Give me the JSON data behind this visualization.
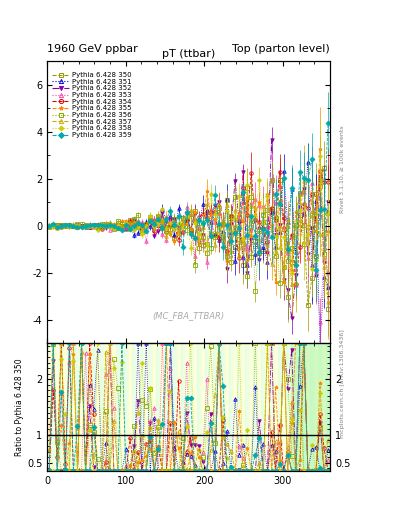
{
  "title_left": "1960 GeV ppbar",
  "title_right": "Top (parton level)",
  "plot_title": "pT (ttbar)",
  "watermark": "(MC_FBA_TTBAR)",
  "ylabel_ratio": "Ratio to Pythia 6.428 350",
  "right_label_top": "Rivet 3.1.10, ≥ 100k events",
  "right_label_bot": "mcplots.cern.ch [arXiv:1306.3436]",
  "xlim": [
    0,
    360
  ],
  "ylim_main": [
    -5,
    7
  ],
  "ylim_ratio": [
    0.35,
    2.65
  ],
  "main_yticks": [
    -4,
    -2,
    0,
    2,
    4,
    6
  ],
  "ratio_yticks": [
    0.5,
    1,
    2
  ],
  "xticks": [
    0,
    100,
    200,
    300
  ],
  "series_colors": [
    "#999900",
    "#0000dd",
    "#8800aa",
    "#ff44aa",
    "#dd0000",
    "#ff8800",
    "#88aa00",
    "#ccaa00",
    "#cccc00",
    "#00aaaa"
  ],
  "series_markers": [
    "s",
    "^",
    "v",
    "^",
    "o",
    "*",
    "s",
    "^",
    "P",
    "D"
  ],
  "series_linestyles": [
    "--",
    ":",
    "-.",
    ":",
    "--",
    "--",
    ":",
    "--",
    ":",
    "--"
  ],
  "series_labels": [
    "Pythia 6.428 350",
    "Pythia 6.428 351",
    "Pythia 6.428 352",
    "Pythia 6.428 353",
    "Pythia 6.428 354",
    "Pythia 6.428 355",
    "Pythia 6.428 356",
    "Pythia 6.428 357",
    "Pythia 6.428 358",
    "Pythia 6.428 359"
  ]
}
